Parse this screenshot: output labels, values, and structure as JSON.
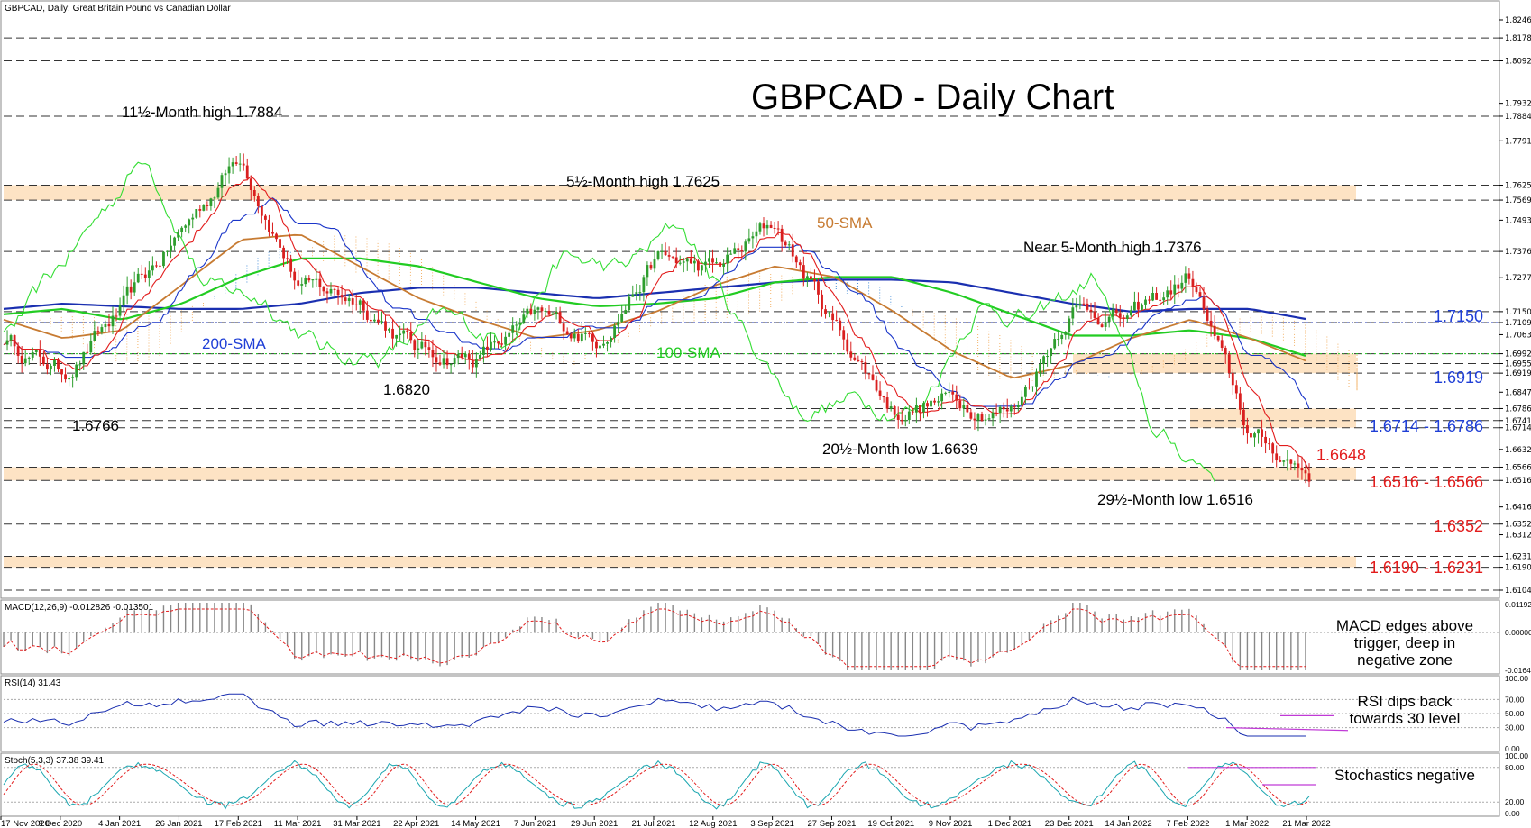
{
  "header": {
    "symbol_line": "GBPCAD, Daily:  Great Britain Pound vs Canadian Dollar"
  },
  "title": "GBPCAD - Daily Chart",
  "colors": {
    "bull": "#2e9e2e",
    "bear": "#d91f1f",
    "sma50": "#c77b32",
    "sma100": "#22cc22",
    "sma200": "#1a2fb0",
    "tenkan": "#e21c1c",
    "kijun": "#1a35c9",
    "chikou": "#33dd33",
    "cloud": "#f3b36a",
    "cloud_blue": "#4a90d9",
    "zone": "#fde3c4",
    "red_label": "#e21c1c",
    "blue_label": "#1f3fd6"
  },
  "annotations": {
    "high_11m": "11½-Month high 1.7884",
    "high_5m": "5½-Month high 1.7625",
    "near_5m": "Near 5-Month high 1.7376",
    "low_20m": "20½-Month low 1.6639",
    "low_29m": "29½-Month low 1.6516",
    "low_1_6766": "1.6766",
    "low_1_6820": "1.6820",
    "sma50": "50-SMA",
    "sma100": "100-SMA",
    "sma200": "200-SMA"
  },
  "levels_right": {
    "l1": "1.7150",
    "l2": "1.6919",
    "l3": "1.6714 - 1.6786",
    "l4": "1.6648",
    "l5": "1.6516 - 1.6566",
    "l6": "1.6352",
    "l7": "1.6190 - 1.6231"
  },
  "price_axis": {
    "ticks": [
      "1.82460",
      "1.81780",
      "1.80920",
      "1.79325",
      "1.78840",
      "1.77915",
      "1.76250",
      "1.75690",
      "1.74935",
      "1.73760",
      "1.72775",
      "1.71500",
      "1.71090",
      "1.70635",
      "1.69920",
      "1.69550",
      "1.69190",
      "1.68475",
      "1.67860",
      "1.67410",
      "1.67140",
      "1.66325",
      "1.65660",
      "1.65160",
      "1.64165",
      "1.63520",
      "1.63120",
      "1.62310",
      "1.61900",
      "1.61040"
    ]
  },
  "macd": {
    "label": "MACD(12,26,9) -0.012826 -0.013501",
    "ticks": [
      "0.011920",
      "0.000000",
      "-0.016446"
    ],
    "comment": "MACD edges above trigger, deep in negative zone"
  },
  "rsi": {
    "label": "RSI(14) 31.43",
    "ticks": [
      "100.00",
      "70.00",
      "50.00",
      "30.00",
      "0.00"
    ],
    "comment": "RSI dips back towards 30 level"
  },
  "stoch": {
    "label": "Stoch(5,3,3) 37.38 39.41",
    "ticks": [
      "100.00",
      "80.00",
      "20.00",
      "0.00"
    ],
    "comment": "Stochastics negative"
  },
  "chart_data": {
    "type": "line",
    "title": "GBPCAD - Daily Chart",
    "xlabel": "",
    "ylabel": "",
    "x": [
      "17 Nov 2020",
      "9 Dec 2020",
      "4 Jan 2021",
      "26 Jan 2021",
      "17 Feb 2021",
      "11 Mar 2021",
      "31 Mar 2021",
      "22 Apr 2021",
      "14 May 2021",
      "7 Jun 2021",
      "29 Jun 2021",
      "21 Jul 2021",
      "12 Aug 2021",
      "3 Sep 2021",
      "27 Sep 2021",
      "19 Oct 2021",
      "9 Nov 2021",
      "1 Dec 2021",
      "23 Dec 2021",
      "14 Jan 2022",
      "7 Feb 2022",
      "1 Mar 2022",
      "21 Mar 2022"
    ],
    "ylim": [
      1.6104,
      1.8246
    ],
    "series": [
      {
        "name": "",
        "values": [
          1.705,
          1.692,
          1.715,
          1.745,
          1.775,
          1.724,
          1.72,
          1.7,
          1.698,
          1.712,
          1.705,
          1.735,
          1.73,
          1.748,
          1.71,
          1.678,
          1.682,
          1.678,
          1.718,
          1.712,
          1.728,
          1.668,
          1.655
        ]
      },
      {
        "name": "50-SMA",
        "values": [
          1.712,
          1.705,
          1.708,
          1.725,
          1.742,
          1.744,
          1.732,
          1.72,
          1.712,
          1.705,
          1.708,
          1.715,
          1.725,
          1.732,
          1.728,
          1.715,
          1.7,
          1.69,
          1.695,
          1.705,
          1.712,
          1.705,
          1.696
        ]
      },
      {
        "name": "100-SMA",
        "values": [
          1.714,
          1.716,
          1.712,
          1.718,
          1.728,
          1.735,
          1.735,
          1.732,
          1.726,
          1.72,
          1.717,
          1.718,
          1.72,
          1.726,
          1.728,
          1.728,
          1.722,
          1.714,
          1.706,
          1.706,
          1.708,
          1.705,
          1.698
        ]
      },
      {
        "name": "200-SMA",
        "values": [
          1.716,
          1.718,
          1.717,
          1.716,
          1.716,
          1.718,
          1.722,
          1.724,
          1.724,
          1.722,
          1.72,
          1.722,
          1.724,
          1.726,
          1.727,
          1.727,
          1.726,
          1.722,
          1.718,
          1.715,
          1.716,
          1.716,
          1.712
        ]
      }
    ],
    "levels": [
      1.8178,
      1.8092,
      1.7884,
      1.7625,
      1.7569,
      1.7376,
      1.715,
      1.7109,
      1.6992,
      1.6955,
      1.6919,
      1.6786,
      1.6741,
      1.6714,
      1.6566,
      1.6516,
      1.6352,
      1.6231,
      1.619,
      1.6104
    ],
    "zones": [
      [
        1.7569,
        1.7625
      ],
      [
        1.6919,
        1.6992
      ],
      [
        1.6714,
        1.6786
      ],
      [
        1.6516,
        1.6566
      ],
      [
        1.619,
        1.6231
      ]
    ],
    "grid": false
  }
}
